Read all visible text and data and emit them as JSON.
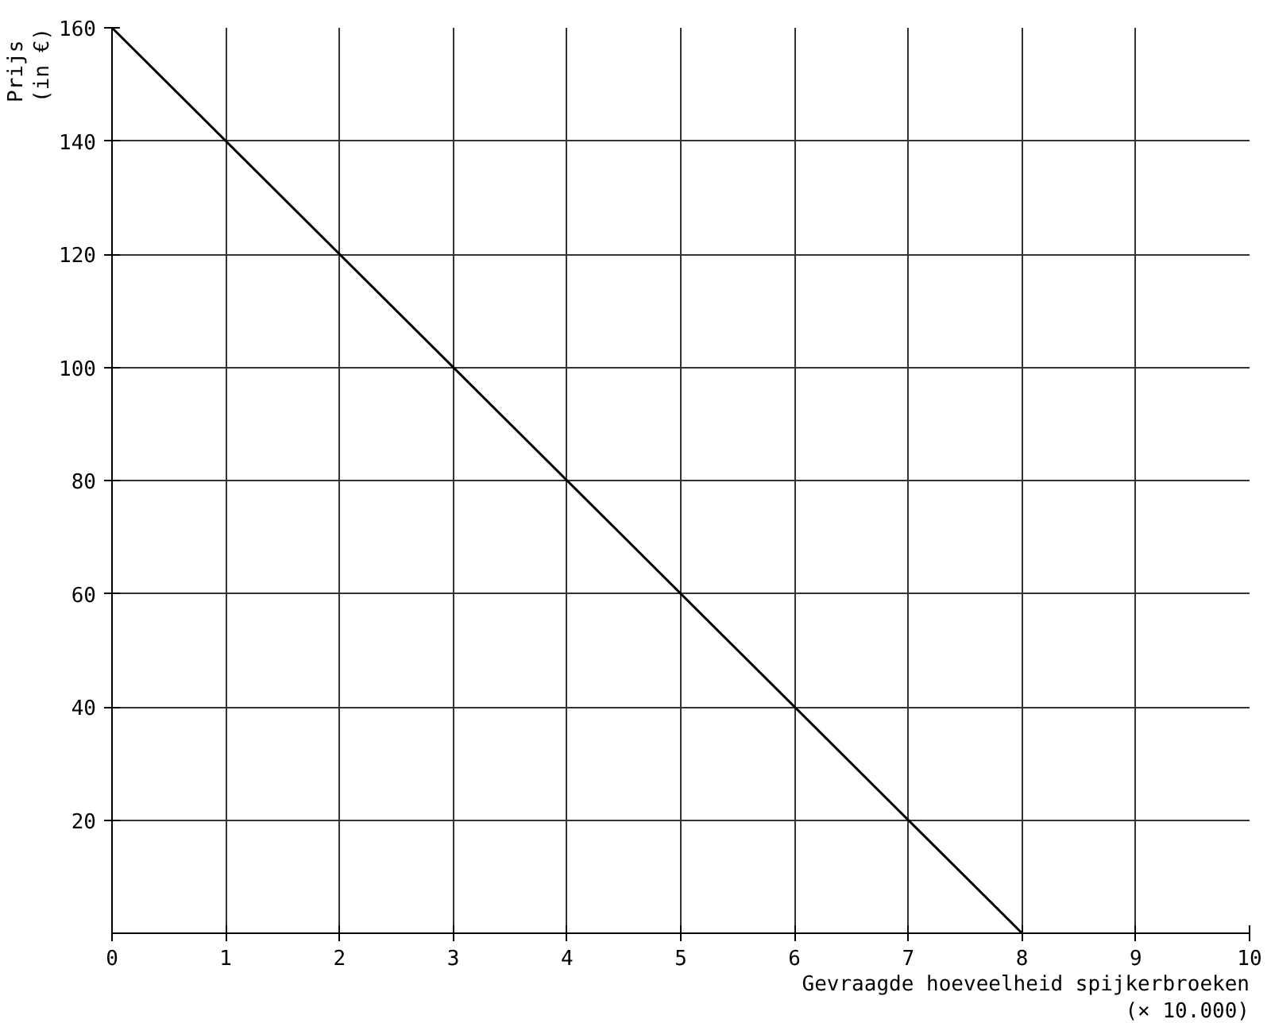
{
  "chart_data": {
    "type": "line",
    "xlabel": "Gevraagde hoeveelheid spijkerbroeken\n(× 10.000)",
    "ylabel": "Prijs\n(in €)",
    "x": [
      0,
      8
    ],
    "series": [
      {
        "color": "#000000",
        "values": [
          160,
          0
        ]
      }
    ],
    "xlim": [
      0,
      10
    ],
    "ylim": [
      0,
      160
    ],
    "xticks": [
      0,
      1,
      2,
      3,
      4,
      5,
      6,
      7,
      8,
      9,
      10
    ],
    "yticks": [
      20,
      40,
      60,
      80,
      100,
      120,
      140,
      160
    ],
    "grid": true,
    "marker": "none",
    "line_style": "solid"
  }
}
